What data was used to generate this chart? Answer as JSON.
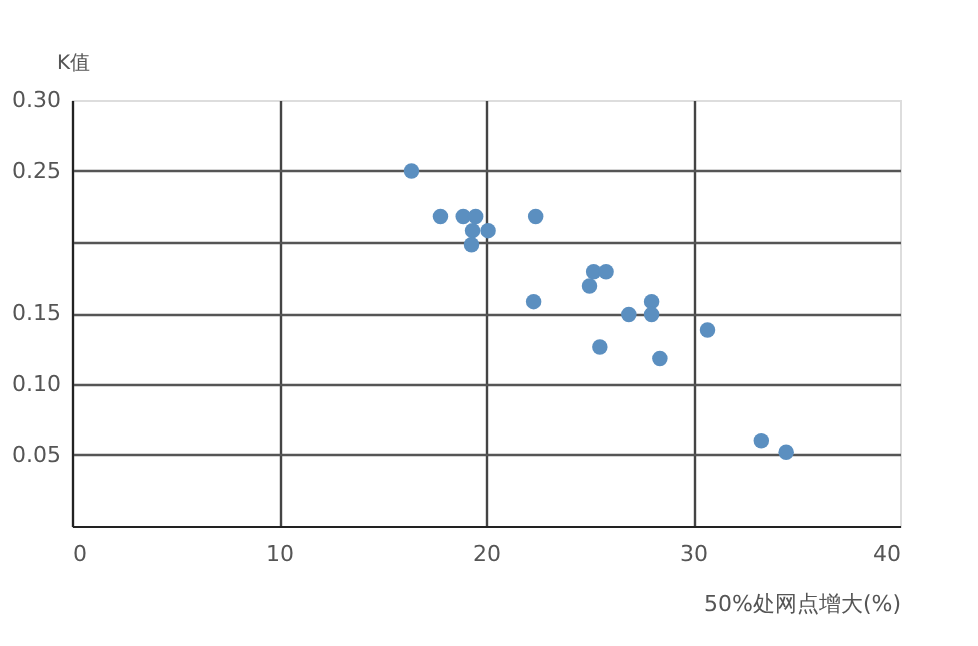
{
  "chart_data": {
    "type": "scatter",
    "xlabel": "50%处网点增大(%)",
    "ylabel": "K值",
    "x": [
      16.4,
      17.8,
      18.9,
      19.5,
      19.35,
      20.1,
      19.3,
      22.4,
      25.2,
      25.8,
      25.0,
      22.3,
      28.0,
      26.9,
      28.0,
      30.7,
      25.5,
      28.4,
      33.3,
      34.5
    ],
    "series": [
      {
        "color": "#5b8fc0",
        "values": [
          0.25,
          0.218,
          0.218,
          0.218,
          0.208,
          0.208,
          0.198,
          0.218,
          0.179,
          0.179,
          0.169,
          0.158,
          0.158,
          0.149,
          0.149,
          0.138,
          0.126,
          0.118,
          0.06,
          0.052
        ]
      }
    ],
    "xlim": [
      0,
      40
    ],
    "xticks": [
      0,
      10,
      20,
      30,
      40
    ],
    "ylim": [
      0,
      0.3
    ],
    "yticks": [
      {
        "value": 0,
        "label": null
      },
      0.05,
      {
        "value": 0.1,
        "label": "0.10"
      },
      0.15,
      {
        "value": 0.2,
        "label": null
      },
      0.25,
      {
        "value": 0.3,
        "label": "0.30"
      }
    ],
    "grid": true,
    "marker": "circle"
  }
}
